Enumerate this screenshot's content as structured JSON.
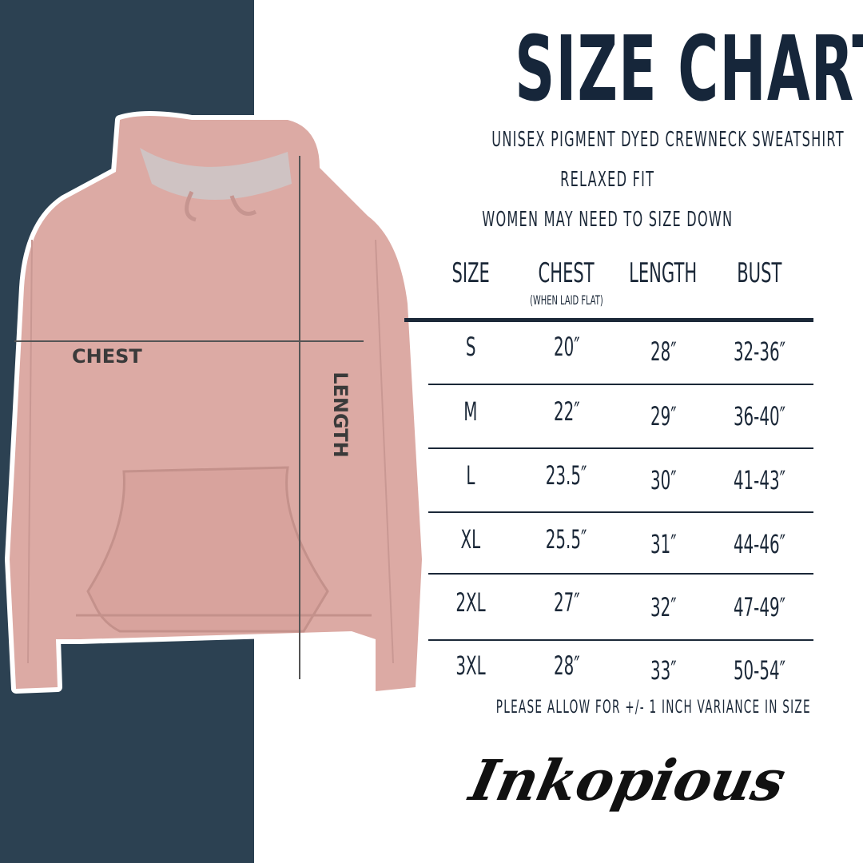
{
  "title": "SIZE CHART",
  "subtitles": [
    "UNISEX PIGMENT DYED CREWNECK SWEATSHIRT",
    "RELAXED FIT",
    "WOMEN MAY NEED TO SIZE DOWN"
  ],
  "table": {
    "headers": [
      "SIZE",
      "CHEST",
      "LENGTH",
      "BUST"
    ],
    "chest_note": "(WHEN LAID FLAT)",
    "rows": [
      [
        "S",
        "20″",
        "28″",
        "32-36″"
      ],
      [
        "M",
        "22″",
        "29″",
        "36-40″"
      ],
      [
        "L",
        "23.5″",
        "30″",
        "41-43″"
      ],
      [
        "XL",
        "25.5″",
        "31″",
        "44-46″"
      ],
      [
        "2XL",
        "27″",
        "32″",
        "47-49″"
      ],
      [
        "3XL",
        "28″",
        "33″",
        "50-54″"
      ]
    ]
  },
  "note": "PLEASE ALLOW FOR +/- 1 INCH VARIANCE IN SIZE",
  "diagram": {
    "chest_label": "CHEST",
    "length_label": "LENGTH"
  },
  "logo": "Inkopious",
  "colors": {
    "panel": "#2c4152",
    "text": "#1b2838",
    "hoodie": "#dcaaa4"
  }
}
